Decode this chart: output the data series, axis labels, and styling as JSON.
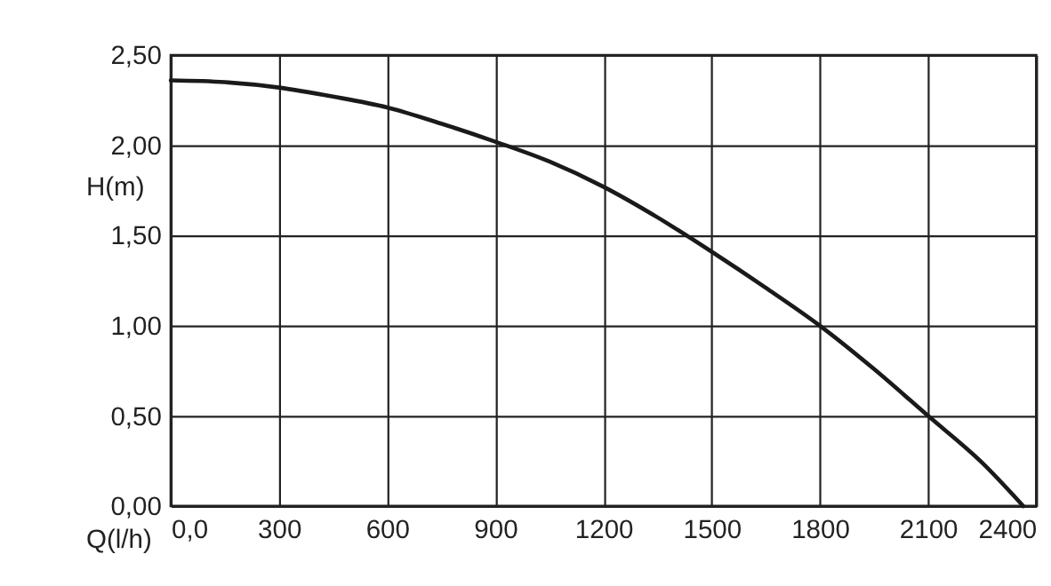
{
  "chart_data": {
    "type": "line",
    "xlabel": "Q(l/h)",
    "ylabel": "H(m)",
    "x": [
      0,
      150,
      300,
      450,
      600,
      750,
      900,
      1050,
      1200,
      1350,
      1500,
      1650,
      1800,
      1950,
      2100,
      2250,
      2364
    ],
    "series": [
      {
        "color": "#1a1a1a",
        "values": [
          2.36,
          2.35,
          2.32,
          2.27,
          2.21,
          2.12,
          2.02,
          1.91,
          1.77,
          1.6,
          1.41,
          1.21,
          1.0,
          0.76,
          0.5,
          0.24,
          0.0
        ]
      }
    ],
    "xlim": [
      0,
      2400
    ],
    "ylim": [
      0,
      2.5
    ],
    "xticks": [
      {
        "value": 0,
        "label": "0,0"
      },
      300,
      600,
      900,
      1200,
      1500,
      1800,
      2100,
      2400
    ],
    "yticks": [
      {
        "value": 0,
        "label": "0,00"
      },
      {
        "value": 0.5,
        "label": "0,50"
      },
      {
        "value": 1,
        "label": "1,00"
      },
      {
        "value": 1.5,
        "label": "1,50"
      },
      {
        "value": 2,
        "label": "2,00"
      },
      {
        "value": 2.5,
        "label": "2,50"
      }
    ],
    "grid": true,
    "marker": "none",
    "line_style": "solid"
  }
}
